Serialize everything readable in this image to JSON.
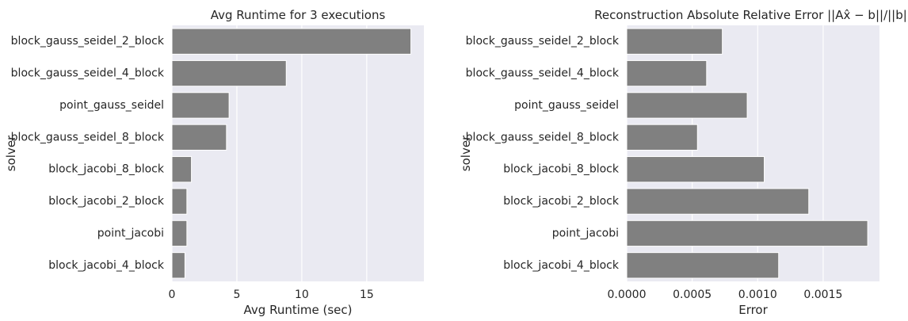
{
  "chart_data": [
    {
      "type": "bar",
      "orientation": "horizontal",
      "title": "Avg Runtime for 3 executions",
      "xlabel": "Avg Runtime (sec)",
      "ylabel": "solver",
      "categories": [
        "block_gauss_seidel_2_block",
        "block_gauss_seidel_4_block",
        "point_gauss_seidel",
        "block_gauss_seidel_8_block",
        "block_jacobi_8_block",
        "block_jacobi_2_block",
        "point_jacobi",
        "block_jacobi_4_block"
      ],
      "values": [
        18.4,
        8.8,
        4.4,
        4.2,
        1.5,
        1.15,
        1.15,
        1.0
      ],
      "xlim": [
        0,
        19.4
      ],
      "xticks": [
        0,
        5,
        10,
        15
      ],
      "xtick_labels": [
        "0",
        "5",
        "10",
        "15"
      ],
      "bar_color": "#808080",
      "background": "#eaeaf2",
      "grid": true
    },
    {
      "type": "bar",
      "orientation": "horizontal",
      "title": "Reconstruction Absolute Relative Error ||Ax̂ − b||/||b||",
      "xlabel": "Error",
      "ylabel": "solver",
      "categories": [
        "block_gauss_seidel_2_block",
        "block_gauss_seidel_4_block",
        "point_gauss_seidel",
        "block_gauss_seidel_8_block",
        "block_jacobi_8_block",
        "block_jacobi_2_block",
        "point_jacobi",
        "block_jacobi_4_block"
      ],
      "values": [
        0.00073,
        0.00061,
        0.00092,
        0.00054,
        0.00105,
        0.00139,
        0.00184,
        0.00116
      ],
      "xlim": [
        0,
        0.00193
      ],
      "xticks": [
        0,
        0.0005,
        0.001,
        0.0015
      ],
      "xtick_labels": [
        "0.0000",
        "0.0005",
        "0.0010",
        "0.0015"
      ],
      "bar_color": "#808080",
      "background": "#eaeaf2",
      "grid": true
    }
  ]
}
